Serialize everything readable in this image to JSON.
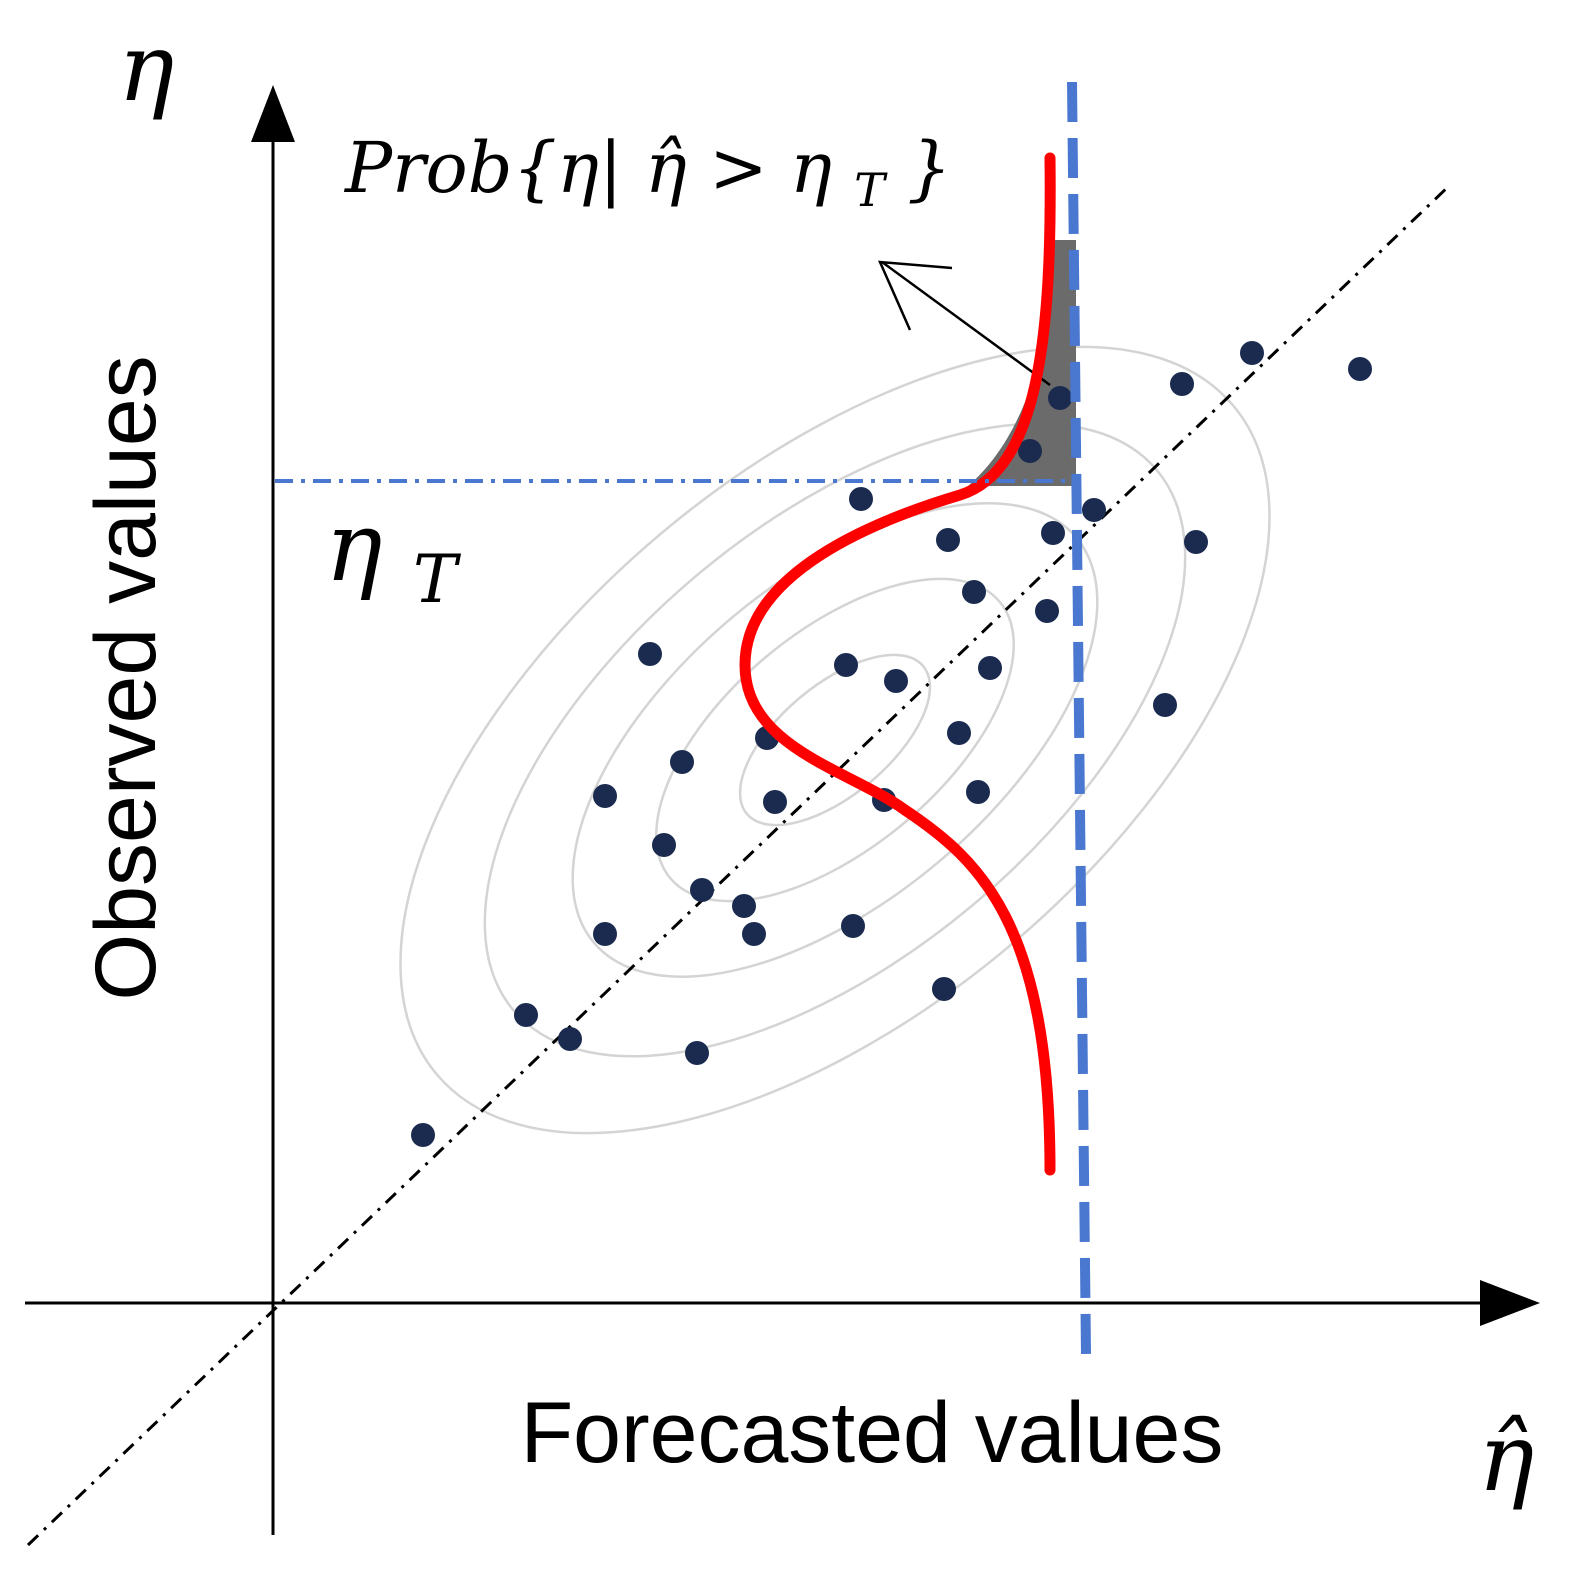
{
  "labels": {
    "y_axis_symbol": "η",
    "x_axis_symbol": "η̂",
    "y_axis_title": "Observed  values",
    "x_axis_title": "Forecasted values",
    "threshold": {
      "main": "η",
      "sub": "T"
    },
    "probability": {
      "lead": "Prob{η|",
      "hat": "η̂",
      "mid": " > η",
      "sub": "T",
      "tail": "}"
    }
  },
  "colors": {
    "points": "#1a2b4f",
    "density_curve": "#ff0000",
    "threshold_lines": "#4a78d0",
    "shaded_tail": "#6b6b6b",
    "contours": "#d4d4d4",
    "axes": "#000000"
  },
  "icons": {
    "axis_arrow_up": "arrow-up-icon",
    "axis_arrow_right": "arrow-right-icon",
    "pointer": "pointer-arrow-icon"
  }
}
